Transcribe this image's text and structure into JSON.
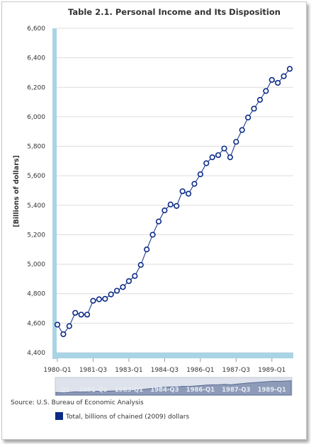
{
  "chart_data": {
    "type": "line",
    "title": "Table 2.1. Personal Income and Its Disposition",
    "ylabel": "[Billions of dollars]",
    "xlabel": "",
    "ylim": [
      4400,
      6600
    ],
    "yticks": [
      "4,400",
      "4,600",
      "4,800",
      "5,000",
      "5,200",
      "5,400",
      "5,600",
      "5,800",
      "6,000",
      "6,200",
      "6,400",
      "6,600"
    ],
    "xtick_labels": [
      "1980-Q1",
      "1981-Q3",
      "1983-Q1",
      "1984-Q3",
      "1986-Q1",
      "1987-Q3",
      "1989-Q1"
    ],
    "navigator_labels": [
      "Q1",
      "1981-Q3",
      "1983-Q1",
      "1984-Q3",
      "1986-Q1",
      "1987-Q3",
      "1989-Q1"
    ],
    "grid": true,
    "legend_position": "bottom-left",
    "x": [
      "1980-Q1",
      "1980-Q2",
      "1980-Q3",
      "1980-Q4",
      "1981-Q1",
      "1981-Q2",
      "1981-Q3",
      "1981-Q4",
      "1982-Q1",
      "1982-Q2",
      "1982-Q3",
      "1982-Q4",
      "1983-Q1",
      "1983-Q2",
      "1983-Q3",
      "1983-Q4",
      "1984-Q1",
      "1984-Q2",
      "1984-Q3",
      "1984-Q4",
      "1985-Q1",
      "1985-Q2",
      "1985-Q3",
      "1985-Q4",
      "1986-Q1",
      "1986-Q2",
      "1986-Q3",
      "1986-Q4",
      "1987-Q1",
      "1987-Q2",
      "1987-Q3",
      "1987-Q4",
      "1988-Q1",
      "1988-Q2",
      "1988-Q3",
      "1988-Q4",
      "1989-Q1",
      "1989-Q2",
      "1989-Q3",
      "1989-Q4"
    ],
    "series": [
      {
        "name": "Total, billions of chained (2009) dollars",
        "color": "#0b2a87",
        "values": [
          4590,
          4525,
          4580,
          4670,
          4658,
          4658,
          4752,
          4762,
          4765,
          4795,
          4820,
          4845,
          4885,
          4920,
          4995,
          5100,
          5200,
          5290,
          5365,
          5405,
          5395,
          5495,
          5478,
          5545,
          5610,
          5685,
          5725,
          5740,
          5785,
          5725,
          5830,
          5910,
          5995,
          6055,
          6115,
          6175,
          6250,
          6230,
          6275,
          6325
        ]
      }
    ]
  },
  "source": "Source: U.S. Bureau of Economic Analysis",
  "legend": {
    "label": "Total, billions of chained (2009) dollars",
    "color": "#0b2a87"
  },
  "colors": {
    "accent_bar": "#a8d4e4",
    "line": "#0b2a87",
    "navigator_fill": "#8e9bb8",
    "grid": "#dcdcdc"
  }
}
